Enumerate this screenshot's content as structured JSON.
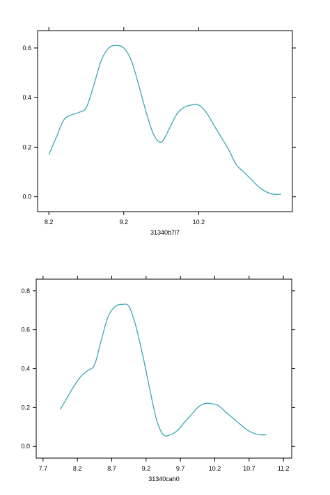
{
  "colors": {
    "line": "#3aa8b6"
  },
  "chart_data": [
    {
      "type": "line",
      "xlabel": "31340b7l7",
      "xlim": [
        8.05,
        11.45
      ],
      "ylim": [
        -0.06,
        0.67
      ],
      "xticks": [
        8.2,
        9.2,
        10.2
      ],
      "xtick_labels": [
        "8.2",
        "9.2",
        "10.2"
      ],
      "yticks": [
        0.0,
        0.2,
        0.4,
        0.6
      ],
      "ytick_labels": [
        "0.0",
        "0.2",
        "0.4",
        "0.6"
      ],
      "grid": false,
      "series": [
        {
          "x": [
            8.2,
            8.3,
            8.4,
            8.5,
            8.6,
            8.7,
            8.8,
            8.9,
            9.0,
            9.1,
            9.2,
            9.3,
            9.4,
            9.5,
            9.6,
            9.7,
            9.8,
            9.9,
            10.0,
            10.1,
            10.2,
            10.3,
            10.4,
            10.5,
            10.6,
            10.7,
            10.8,
            10.9,
            11.0,
            11.1,
            11.2,
            11.3
          ],
          "y": [
            0.17,
            0.24,
            0.31,
            0.33,
            0.34,
            0.36,
            0.45,
            0.55,
            0.6,
            0.61,
            0.6,
            0.55,
            0.45,
            0.34,
            0.25,
            0.22,
            0.27,
            0.33,
            0.36,
            0.37,
            0.37,
            0.34,
            0.29,
            0.24,
            0.19,
            0.13,
            0.1,
            0.07,
            0.04,
            0.02,
            0.01,
            0.01
          ]
        }
      ]
    },
    {
      "type": "line",
      "xlabel": "31340cah0",
      "xlim": [
        7.6,
        11.32
      ],
      "ylim": [
        -0.06,
        0.86
      ],
      "xticks": [
        7.7,
        8.2,
        8.7,
        9.2,
        9.7,
        10.2,
        10.7,
        11.2
      ],
      "xtick_labels": [
        "7.7",
        "8.2",
        "8.7",
        "9.2",
        "9.7",
        "10.2",
        "10.7",
        "11.2"
      ],
      "yticks": [
        0.0,
        0.2,
        0.4,
        0.6,
        0.8
      ],
      "ytick_labels": [
        "0.0",
        "0.2",
        "0.4",
        "0.6",
        "0.8"
      ],
      "grid": false,
      "series": [
        {
          "x": [
            7.95,
            8.05,
            8.15,
            8.25,
            8.35,
            8.45,
            8.55,
            8.65,
            8.75,
            8.85,
            8.95,
            9.05,
            9.15,
            9.25,
            9.35,
            9.45,
            9.55,
            9.65,
            9.75,
            9.85,
            9.95,
            10.05,
            10.15,
            10.25,
            10.35,
            10.45,
            10.55,
            10.65,
            10.75,
            10.85,
            10.95
          ],
          "y": [
            0.19,
            0.25,
            0.31,
            0.36,
            0.39,
            0.42,
            0.55,
            0.67,
            0.72,
            0.73,
            0.72,
            0.62,
            0.47,
            0.3,
            0.14,
            0.06,
            0.06,
            0.08,
            0.12,
            0.16,
            0.2,
            0.22,
            0.22,
            0.21,
            0.18,
            0.15,
            0.12,
            0.09,
            0.07,
            0.06,
            0.06
          ]
        }
      ]
    }
  ]
}
